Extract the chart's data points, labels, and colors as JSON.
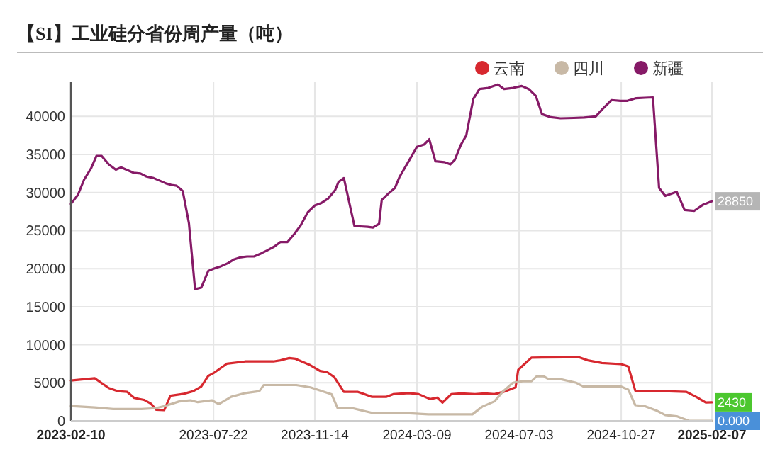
{
  "chart_data": {
    "type": "line",
    "title": "【SI】工业硅分省份周产量（吨）",
    "xlim": [
      "2023-02-10",
      "2025-02-07"
    ],
    "xticks": [
      "2023-02-10",
      "2023-07-22",
      "2023-11-14",
      "2024-03-09",
      "2024-07-03",
      "2024-10-27",
      "2025-02-07"
    ],
    "ylim": [
      0,
      44500
    ],
    "yticks": [
      0,
      5000,
      10000,
      15000,
      20000,
      25000,
      30000,
      35000,
      40000
    ],
    "grid": true,
    "legend": "top right",
    "series": [
      {
        "name": "云南",
        "color": "#d7282f",
        "x": [
          "2023-02-10",
          "2023-03-09",
          "2023-03-25",
          "2023-04-04",
          "2023-04-15",
          "2023-04-23",
          "2023-05-04",
          "2023-05-12",
          "2023-05-18",
          "2023-05-27",
          "2023-06-03",
          "2023-06-18",
          "2023-06-29",
          "2023-07-08",
          "2023-07-16",
          "2023-07-23",
          "2023-08-06",
          "2023-08-27",
          "2023-09-28",
          "2023-10-06",
          "2023-10-16",
          "2023-10-23",
          "2023-11-09",
          "2023-11-20",
          "2023-11-28",
          "2023-12-06",
          "2023-12-17",
          "2024-01-02",
          "2024-01-18",
          "2024-02-03",
          "2024-02-11",
          "2024-02-29",
          "2024-03-11",
          "2024-03-24",
          "2024-04-01",
          "2024-04-07",
          "2024-04-17",
          "2024-04-28",
          "2024-05-14",
          "2024-05-25",
          "2024-06-05",
          "2024-06-18",
          "2024-06-29",
          "2024-07-02",
          "2024-07-09",
          "2024-07-17",
          "2024-08-24",
          "2024-09-09",
          "2024-09-19",
          "2024-10-05",
          "2024-10-27",
          "2024-11-04",
          "2024-11-12",
          "2024-12-14",
          "2025-01-09",
          "2025-01-20",
          "2025-01-31",
          "2025-02-07"
        ],
        "values": [
          5300,
          5600,
          4300,
          3900,
          3800,
          3000,
          2750,
          2250,
          1450,
          1400,
          3300,
          3550,
          3900,
          4500,
          5900,
          6350,
          7500,
          7800,
          7800,
          7950,
          8250,
          8150,
          7300,
          6550,
          6400,
          5750,
          3800,
          3800,
          3150,
          3150,
          3500,
          3650,
          3500,
          2850,
          3050,
          2400,
          3500,
          3600,
          3500,
          3600,
          3500,
          3900,
          4400,
          6700,
          7450,
          8300,
          8350,
          8350,
          7950,
          7600,
          7450,
          7150,
          3950,
          3900,
          3800,
          3150,
          2400,
          2430
        ]
      },
      {
        "name": "四川",
        "color": "#c8b9a6",
        "x": [
          "2023-02-10",
          "2023-03-09",
          "2023-03-30",
          "2023-05-01",
          "2023-05-17",
          "2023-05-28",
          "2023-06-13",
          "2023-06-26",
          "2023-07-04",
          "2023-07-20",
          "2023-07-28",
          "2023-08-11",
          "2023-08-27",
          "2023-09-12",
          "2023-09-17",
          "2023-10-24",
          "2023-11-09",
          "2023-11-25",
          "2023-12-03",
          "2023-12-10",
          "2023-12-27",
          "2024-01-18",
          "2024-02-19",
          "2024-03-22",
          "2024-05-11",
          "2024-05-22",
          "2024-06-05",
          "2024-06-15",
          "2024-06-26",
          "2024-07-07",
          "2024-07-17",
          "2024-07-23",
          "2024-07-31",
          "2024-08-05",
          "2024-08-18",
          "2024-09-06",
          "2024-09-14",
          "2024-10-27",
          "2024-11-04",
          "2024-11-12",
          "2024-11-22",
          "2024-12-06",
          "2024-12-16",
          "2024-12-29",
          "2025-01-12",
          "2025-02-07"
        ],
        "values": [
          1950,
          1750,
          1550,
          1550,
          1650,
          1950,
          2550,
          2700,
          2450,
          2700,
          2200,
          3150,
          3650,
          3900,
          4700,
          4700,
          4400,
          3800,
          3500,
          1650,
          1650,
          1050,
          1050,
          850,
          850,
          1850,
          2550,
          3900,
          5000,
          5200,
          5200,
          5850,
          5850,
          5500,
          5500,
          5000,
          4500,
          4500,
          4100,
          2050,
          1950,
          1350,
          750,
          600,
          0,
          0
        ]
      },
      {
        "name": "新疆",
        "color": "#861a67",
        "x": [
          "2023-02-10",
          "2023-02-18",
          "2023-02-25",
          "2023-03-05",
          "2023-03-11",
          "2023-03-17",
          "2023-03-25",
          "2023-04-02",
          "2023-04-08",
          "2023-04-14",
          "2023-04-22",
          "2023-04-30",
          "2023-05-07",
          "2023-05-15",
          "2023-05-23",
          "2023-05-29",
          "2023-06-04",
          "2023-06-10",
          "2023-06-17",
          "2023-06-24",
          "2023-07-01",
          "2023-07-08",
          "2023-07-16",
          "2023-07-22",
          "2023-07-30",
          "2023-08-07",
          "2023-08-14",
          "2023-08-22",
          "2023-08-29",
          "2023-09-06",
          "2023-09-14",
          "2023-09-21",
          "2023-09-29",
          "2023-10-06",
          "2023-10-14",
          "2023-10-22",
          "2023-10-29",
          "2023-11-06",
          "2023-11-14",
          "2023-11-21",
          "2023-11-29",
          "2023-12-07",
          "2023-12-11",
          "2023-12-17",
          "2023-12-29",
          "2024-01-13",
          "2024-01-19",
          "2024-01-26",
          "2024-01-29",
          "2024-02-05",
          "2024-02-13",
          "2024-02-18",
          "2024-03-02",
          "2024-03-09",
          "2024-03-17",
          "2024-03-23",
          "2024-03-30",
          "2024-04-09",
          "2024-04-16",
          "2024-04-21",
          "2024-04-28",
          "2024-05-04",
          "2024-05-12",
          "2024-05-19",
          "2024-05-29",
          "2024-06-09",
          "2024-06-16",
          "2024-06-26",
          "2024-07-06",
          "2024-07-14",
          "2024-07-22",
          "2024-07-29",
          "2024-08-08",
          "2024-08-19",
          "2024-09-03",
          "2024-09-15",
          "2024-09-28",
          "2024-10-06",
          "2024-10-16",
          "2024-10-26",
          "2024-11-03",
          "2024-11-13",
          "2024-11-23",
          "2024-12-02",
          "2024-12-09",
          "2024-12-16",
          "2024-12-29",
          "2025-01-07",
          "2025-01-18",
          "2025-01-28",
          "2025-02-07"
        ],
        "values": [
          28500,
          29700,
          31700,
          33200,
          34800,
          34800,
          33700,
          33000,
          33300,
          33000,
          32600,
          32500,
          32100,
          31900,
          31500,
          31200,
          31000,
          30900,
          30200,
          26000,
          17300,
          17500,
          19700,
          20000,
          20300,
          20700,
          21200,
          21500,
          21600,
          21600,
          22000,
          22400,
          22900,
          23500,
          23500,
          24600,
          25700,
          27400,
          28300,
          28600,
          29200,
          30300,
          31400,
          31900,
          25600,
          25500,
          25400,
          25900,
          29000,
          29800,
          30600,
          32000,
          34600,
          36000,
          36300,
          37000,
          34100,
          34000,
          33700,
          34300,
          36300,
          37500,
          42300,
          43600,
          43750,
          44200,
          43600,
          43750,
          44000,
          43600,
          42700,
          40300,
          39900,
          39750,
          39800,
          39850,
          40000,
          41000,
          42150,
          42050,
          42050,
          42400,
          42450,
          42500,
          30600,
          29550,
          30100,
          27700,
          27600,
          28400,
          28850
        ]
      }
    ],
    "annotations": [
      {
        "text": "28850",
        "x": "2025-02-07",
        "y": 28850
      },
      {
        "text": "2430",
        "x": "2025-02-07",
        "y": 2430
      },
      {
        "text": "0.000",
        "x": "2025-02-07",
        "y": 0
      }
    ]
  }
}
